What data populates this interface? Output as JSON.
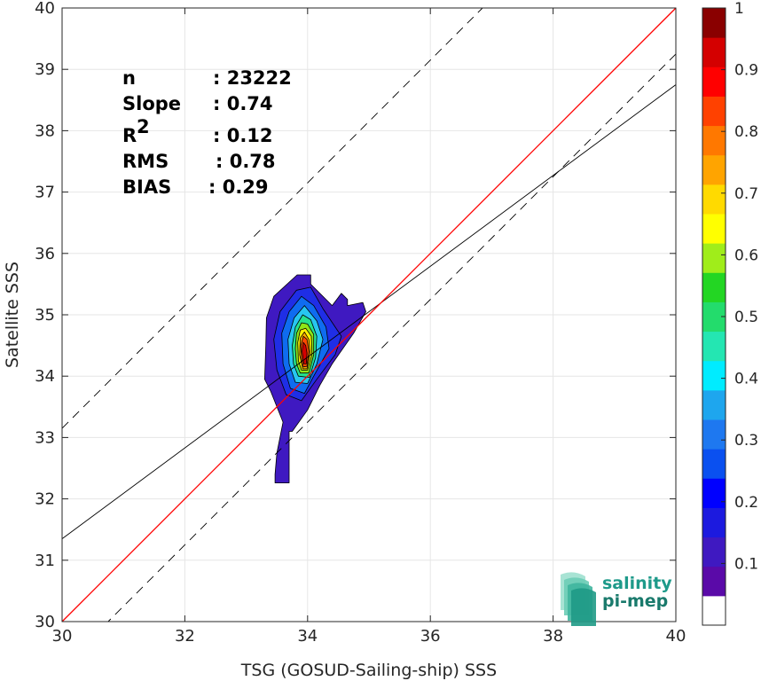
{
  "chart_data": {
    "type": "contour-scatter",
    "xlabel": "TSG (GOSUD-Sailing-ship) SSS",
    "ylabel": "Satellite SSS",
    "xlim": [
      30,
      40
    ],
    "ylim": [
      30,
      40
    ],
    "xticks": [
      "30",
      "32",
      "34",
      "36",
      "38",
      "40"
    ],
    "yticks": [
      "30",
      "31",
      "32",
      "33",
      "34",
      "35",
      "36",
      "37",
      "38",
      "39",
      "40"
    ],
    "grid": true,
    "stats": [
      {
        "label": "n",
        "value": ": 23222"
      },
      {
        "label": "Slope",
        "value": ": 0.74"
      },
      {
        "label": "R",
        "sup": "2",
        "value": ": 0.12"
      },
      {
        "label": "RMS",
        "value": ": 0.78"
      },
      {
        "label": "BIAS",
        "value": ": 0.29"
      }
    ],
    "lines": {
      "identity": {
        "slope": 1,
        "intercept": 0,
        "color": "#ff0000"
      },
      "fit": {
        "slope": 0.74,
        "intercept": 9.15,
        "color": "#000000"
      },
      "upper_band": {
        "slope": 1,
        "intercept": 3.15,
        "color": "#000000",
        "style": "dashed"
      },
      "lower_band": {
        "slope": 1,
        "intercept": -0.75,
        "color": "#000000",
        "style": "dashed"
      }
    },
    "density_peak": {
      "x": 33.95,
      "y": 34.3
    },
    "contour_levels": [
      {
        "level": 0.05,
        "color": "#3f19c1",
        "points": [
          [
            33.47,
            32.26
          ],
          [
            33.7,
            32.26
          ],
          [
            33.7,
            33.1
          ],
          [
            33.75,
            33.1
          ],
          [
            34.0,
            33.45
          ],
          [
            34.2,
            33.85
          ],
          [
            34.4,
            34.2
          ],
          [
            34.75,
            34.7
          ],
          [
            34.95,
            35.05
          ],
          [
            34.9,
            35.2
          ],
          [
            34.65,
            35.15
          ],
          [
            34.65,
            35.25
          ],
          [
            34.55,
            35.35
          ],
          [
            34.4,
            35.15
          ],
          [
            34.05,
            35.5
          ],
          [
            34.05,
            35.65
          ],
          [
            33.83,
            35.65
          ],
          [
            33.45,
            35.3
          ],
          [
            33.33,
            34.95
          ],
          [
            33.32,
            34.5
          ],
          [
            33.3,
            33.95
          ],
          [
            33.4,
            33.75
          ],
          [
            33.6,
            33.25
          ],
          [
            33.5,
            32.75
          ],
          [
            33.47,
            32.4
          ]
        ]
      },
      {
        "level": 0.15,
        "color": "#1f2ee6",
        "points": [
          [
            33.65,
            33.7
          ],
          [
            33.9,
            33.6
          ],
          [
            34.15,
            33.95
          ],
          [
            34.45,
            34.35
          ],
          [
            34.55,
            34.65
          ],
          [
            34.25,
            35.1
          ],
          [
            34.05,
            35.45
          ],
          [
            33.82,
            35.4
          ],
          [
            33.55,
            35.05
          ],
          [
            33.45,
            34.6
          ],
          [
            33.5,
            34.1
          ]
        ]
      },
      {
        "level": 0.25,
        "color": "#0f6cf0",
        "points": [
          [
            33.72,
            33.8
          ],
          [
            33.95,
            33.72
          ],
          [
            34.1,
            34.0
          ],
          [
            34.35,
            34.45
          ],
          [
            34.3,
            34.8
          ],
          [
            34.1,
            35.15
          ],
          [
            33.9,
            35.3
          ],
          [
            33.7,
            35.05
          ],
          [
            33.58,
            34.7
          ],
          [
            33.6,
            34.2
          ]
        ]
      },
      {
        "level": 0.35,
        "color": "#27c6f0",
        "points": [
          [
            33.8,
            33.9
          ],
          [
            34.0,
            33.88
          ],
          [
            34.15,
            34.2
          ],
          [
            34.25,
            34.6
          ],
          [
            34.15,
            34.9
          ],
          [
            33.95,
            35.15
          ],
          [
            33.78,
            34.95
          ],
          [
            33.68,
            34.6
          ],
          [
            33.7,
            34.2
          ]
        ]
      },
      {
        "level": 0.45,
        "color": "#26e28e",
        "points": [
          [
            33.85,
            34.0
          ],
          [
            34.03,
            33.98
          ],
          [
            34.13,
            34.3
          ],
          [
            34.15,
            34.65
          ],
          [
            34.05,
            34.92
          ],
          [
            33.92,
            35.0
          ],
          [
            33.8,
            34.8
          ],
          [
            33.75,
            34.5
          ],
          [
            33.77,
            34.2
          ]
        ]
      },
      {
        "level": 0.55,
        "color": "#8ee618",
        "points": [
          [
            33.88,
            34.05
          ],
          [
            34.02,
            34.05
          ],
          [
            34.1,
            34.35
          ],
          [
            34.1,
            34.68
          ],
          [
            34.0,
            34.85
          ],
          [
            33.9,
            34.87
          ],
          [
            33.82,
            34.7
          ],
          [
            33.8,
            34.45
          ],
          [
            33.82,
            34.2
          ]
        ]
      },
      {
        "level": 0.65,
        "color": "#fff000",
        "points": [
          [
            33.9,
            34.1
          ],
          [
            34.0,
            34.1
          ],
          [
            34.07,
            34.35
          ],
          [
            34.06,
            34.65
          ],
          [
            33.97,
            34.78
          ],
          [
            33.88,
            34.75
          ],
          [
            33.84,
            34.55
          ],
          [
            33.85,
            34.25
          ]
        ]
      },
      {
        "level": 0.75,
        "color": "#ffaa00",
        "points": [
          [
            33.92,
            34.12
          ],
          [
            33.99,
            34.12
          ],
          [
            34.04,
            34.38
          ],
          [
            34.02,
            34.6
          ],
          [
            33.95,
            34.72
          ],
          [
            33.88,
            34.62
          ],
          [
            33.87,
            34.35
          ]
        ]
      },
      {
        "level": 0.85,
        "color": "#ff4a00",
        "points": [
          [
            33.93,
            34.15
          ],
          [
            33.99,
            34.16
          ],
          [
            34.02,
            34.4
          ],
          [
            33.99,
            34.6
          ],
          [
            33.93,
            34.65
          ],
          [
            33.89,
            34.5
          ],
          [
            33.9,
            34.3
          ]
        ]
      },
      {
        "level": 0.95,
        "color": "#d40000",
        "points": [
          [
            33.94,
            34.2
          ],
          [
            33.98,
            34.2
          ],
          [
            33.99,
            34.38
          ],
          [
            33.97,
            34.5
          ],
          [
            33.93,
            34.55
          ],
          [
            33.91,
            34.4
          ]
        ]
      }
    ],
    "colorbar": {
      "ticks": [
        "0.1",
        "0.2",
        "0.3",
        "0.4",
        "0.5",
        "0.6",
        "0.7",
        "0.8",
        "0.9",
        "1"
      ],
      "range": [
        0,
        1
      ],
      "bins": [
        "#ffffff",
        "#5a0aa8",
        "#3f19c1",
        "#1c1adf",
        "#0000ff",
        "#0a50f0",
        "#1e78f0",
        "#1ea6ee",
        "#00ecff",
        "#24e6b2",
        "#23dc6c",
        "#23d623",
        "#a0ed1a",
        "#ffff00",
        "#ffda00",
        "#ffa400",
        "#ff7800",
        "#ff4100",
        "#ff0000",
        "#d40000",
        "#8a0000"
      ]
    },
    "logo": {
      "line1": "salinity",
      "line2": "pi-mep",
      "color": "#1e9a8a"
    }
  }
}
